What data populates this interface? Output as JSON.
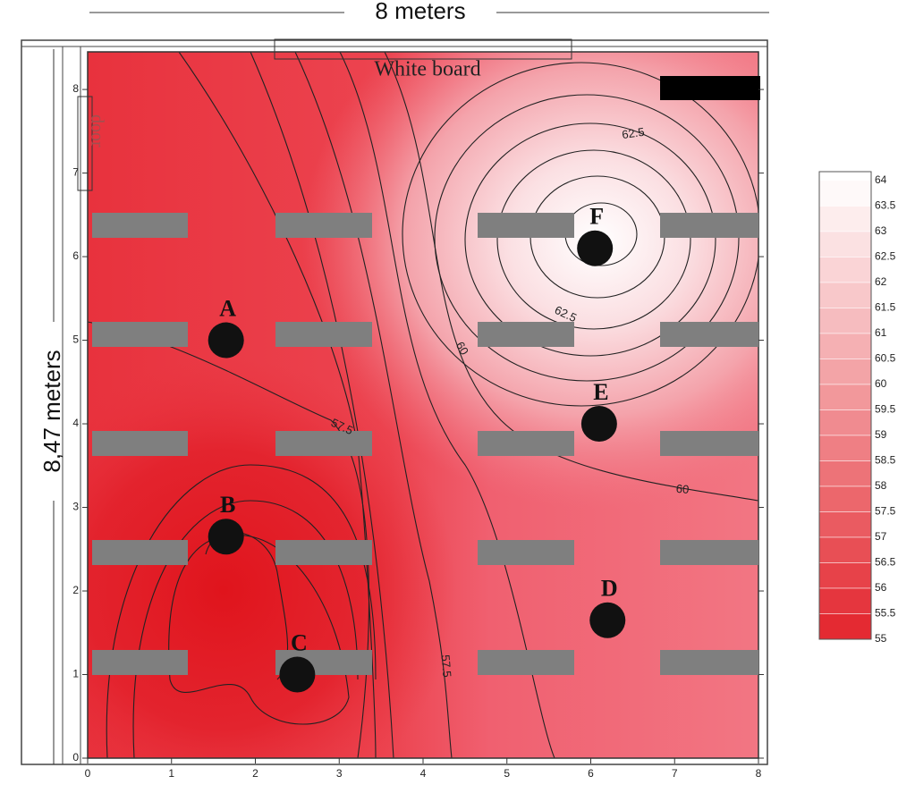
{
  "chart_data": {
    "type": "contour",
    "x_label": "8 meters",
    "y_label": "8,47 meters",
    "xlim": [
      0,
      8
    ],
    "ylim": [
      0,
      8.45
    ],
    "xticks": [
      0,
      1,
      2,
      3,
      4,
      5,
      6,
      7,
      8
    ],
    "yticks": [
      0,
      1,
      2,
      3,
      4,
      5,
      6,
      7,
      8
    ],
    "annotations": [
      "White board",
      "door"
    ],
    "points": {
      "labels": [
        "A",
        "B",
        "C",
        "D",
        "E",
        "F"
      ],
      "x": [
        1.65,
        1.65,
        2.5,
        6.2,
        6.1,
        6.05
      ],
      "y": [
        5.0,
        2.65,
        1.0,
        1.65,
        4.0,
        6.1
      ]
    },
    "contour_labels": [
      62.5,
      62.5,
      60,
      60,
      57.5,
      57.5
    ],
    "colorbar": {
      "levels": [
        64,
        63.5,
        63,
        62.5,
        62,
        61.5,
        61,
        60.5,
        60,
        59.5,
        59,
        58.5,
        58,
        57.5,
        57,
        56.5,
        56,
        55.5,
        55
      ],
      "colors": [
        "#ffffff",
        "#e3242c"
      ]
    }
  }
}
